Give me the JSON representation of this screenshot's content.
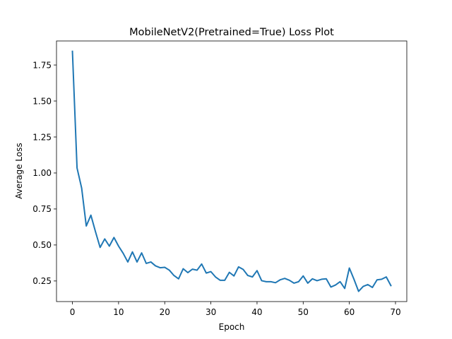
{
  "chart_data": {
    "type": "line",
    "title": "MobileNetV2(Pretrained=True) Loss Plot",
    "xlabel": "Epoch",
    "ylabel": "Average Loss",
    "xlim": [
      -3.45,
      72.45
    ],
    "ylim": [
      0.107,
      1.917
    ],
    "xticks": [
      0,
      10,
      20,
      30,
      40,
      50,
      60,
      70
    ],
    "xtick_labels": [
      "0",
      "10",
      "20",
      "30",
      "40",
      "50",
      "60",
      "70"
    ],
    "yticks": [
      0.25,
      0.5,
      0.75,
      1.0,
      1.25,
      1.5,
      1.75
    ],
    "ytick_labels": [
      "0.25",
      "0.50",
      "0.75",
      "1.00",
      "1.25",
      "1.50",
      "1.75"
    ],
    "grid": false,
    "series": [
      {
        "color": "#1f77b4",
        "x": [
          0,
          1,
          2,
          3,
          4,
          5,
          6,
          7,
          8,
          9,
          10,
          11,
          12,
          13,
          14,
          15,
          16,
          17,
          18,
          19,
          20,
          21,
          22,
          23,
          24,
          25,
          26,
          27,
          28,
          29,
          30,
          31,
          32,
          33,
          34,
          35,
          36,
          37,
          38,
          39,
          40,
          41,
          42,
          43,
          44,
          45,
          46,
          47,
          48,
          49,
          50,
          51,
          52,
          53,
          54,
          55,
          56,
          57,
          58,
          59,
          60,
          61,
          62,
          63,
          64,
          65,
          66,
          67,
          68,
          69
        ],
        "values": [
          1.845,
          1.035,
          0.895,
          0.632,
          0.707,
          0.592,
          0.483,
          0.542,
          0.492,
          0.552,
          0.492,
          0.442,
          0.382,
          0.452,
          0.382,
          0.445,
          0.372,
          0.382,
          0.355,
          0.342,
          0.345,
          0.325,
          0.288,
          0.265,
          0.335,
          0.308,
          0.332,
          0.325,
          0.368,
          0.305,
          0.315,
          0.278,
          0.255,
          0.255,
          0.31,
          0.285,
          0.348,
          0.33,
          0.288,
          0.278,
          0.322,
          0.252,
          0.245,
          0.245,
          0.238,
          0.258,
          0.268,
          0.255,
          0.235,
          0.245,
          0.285,
          0.235,
          0.265,
          0.252,
          0.262,
          0.265,
          0.208,
          0.222,
          0.245,
          0.198,
          0.34,
          0.262,
          0.178,
          0.212,
          0.225,
          0.205,
          0.258,
          0.262,
          0.278,
          0.218
        ]
      }
    ]
  }
}
